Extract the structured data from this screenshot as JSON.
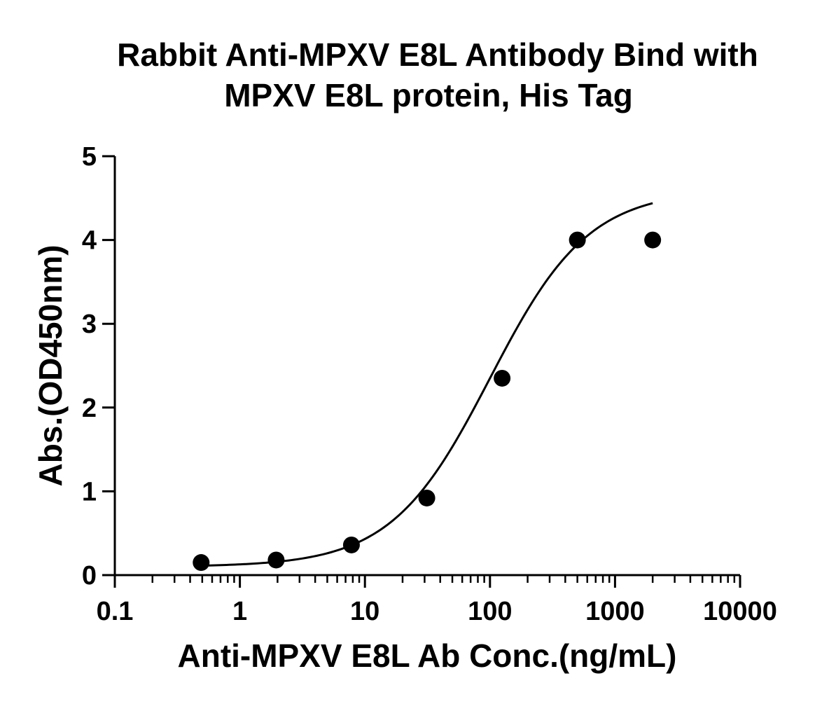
{
  "chart_data": {
    "type": "scatter",
    "title_lines": [
      "Rabbit Anti-MPXV E8L Antibody Bind with",
      "MPXV E8L protein, His Tag"
    ],
    "xlabel": "Anti-MPXV E8L Ab Conc.(ng/mL)",
    "ylabel": "Abs.(OD450nm)",
    "x_scale": "log",
    "xlim": [
      0.1,
      10000
    ],
    "ylim": [
      0,
      5
    ],
    "x_ticks": [
      {
        "value": 0.1,
        "label": "0.1"
      },
      {
        "value": 1,
        "label": "1"
      },
      {
        "value": 10,
        "label": "10"
      },
      {
        "value": 100,
        "label": "100"
      },
      {
        "value": 1000,
        "label": "1000"
      },
      {
        "value": 10000,
        "label": "10000"
      }
    ],
    "y_ticks": [
      {
        "value": 0,
        "label": "0"
      },
      {
        "value": 1,
        "label": "1"
      },
      {
        "value": 2,
        "label": "2"
      },
      {
        "value": 3,
        "label": "3"
      },
      {
        "value": 4,
        "label": "4"
      },
      {
        "value": 5,
        "label": "5"
      }
    ],
    "grid": false,
    "legend": "none",
    "series": [
      {
        "points": [
          {
            "x": 0.49,
            "y": 0.15
          },
          {
            "x": 1.95,
            "y": 0.18
          },
          {
            "x": 7.8,
            "y": 0.36
          },
          {
            "x": 31.25,
            "y": 0.92
          },
          {
            "x": 125,
            "y": 2.35
          },
          {
            "x": 500,
            "y": 4.0
          },
          {
            "x": 2000,
            "y": 4.0
          }
        ],
        "fit": {
          "model": "4PL",
          "bottom": 0.1,
          "top": 4.6,
          "ec50": 100,
          "hill": 1.1,
          "x_range": [
            0.49,
            2000
          ]
        },
        "color": "#000000"
      }
    ]
  }
}
